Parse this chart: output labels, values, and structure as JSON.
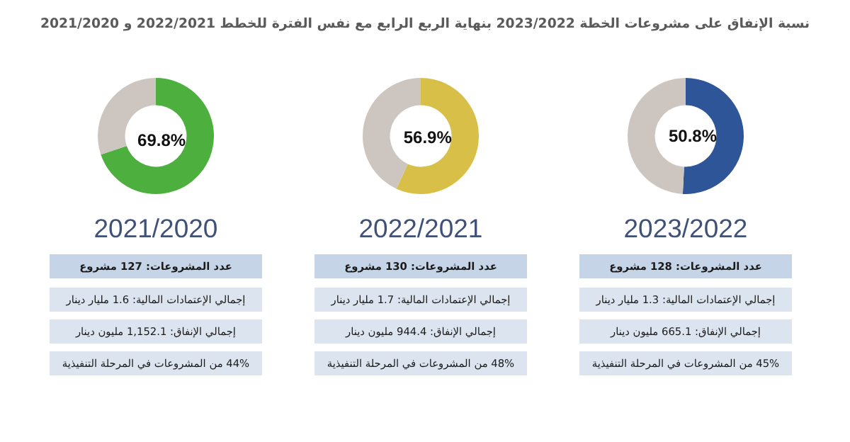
{
  "chart_data": [
    {
      "type": "other",
      "title": "نسبة الإنفاق على مشروعات الخطة 2023/2022 بنهاية الربع الرابع مع نفس الفترة للخطط 2022/2021 و 2021/2020"
    },
    {
      "type": "donut",
      "title": "2023/2022",
      "categories": [
        null,
        null
      ],
      "values": [
        50.8,
        49.2
      ],
      "colors": [
        "#2e5597",
        "#cdc6c0"
      ],
      "value_labels": [
        "50.8%",
        null
      ],
      "annotations": [
        "عدد المشروعات: 128 مشروع",
        "إجمالي الإعتمادات المالية: 1.3 مليار دينار",
        "إجمالي الإنفاق: 665.1 مليون دينار",
        "45% من المشروعات في المرحلة التنفيذية"
      ]
    },
    {
      "type": "donut",
      "title": "2022/2021",
      "categories": [
        null,
        null
      ],
      "values": [
        56.9,
        43.1
      ],
      "colors": [
        "#d8c048",
        "#cdc6c0"
      ],
      "value_labels": [
        "56.9%",
        null
      ],
      "annotations": [
        "عدد المشروعات: 130 مشروع",
        "إجمالي الإعتمادات المالية: 1.7 مليار دينار",
        "إجمالي الإنفاق: 944.4 مليون دينار",
        "48% من المشروعات في المرحلة التنفيذية"
      ]
    },
    {
      "type": "donut",
      "title": "2021/2020",
      "categories": [
        null,
        null
      ],
      "values": [
        69.8,
        30.2
      ],
      "colors": [
        "#4caf3e",
        "#cdc6c0"
      ],
      "value_labels": [
        "69.8%",
        null
      ],
      "annotations": [
        "عدد المشروعات: 127 مشروع",
        "إجمالي الإعتمادات المالية: 1.6 مليار دينار",
        "إجمالي الإنفاق: 1,152.1 مليون دينار",
        "44% من المشروعات في المرحلة التنفيذية"
      ]
    }
  ]
}
